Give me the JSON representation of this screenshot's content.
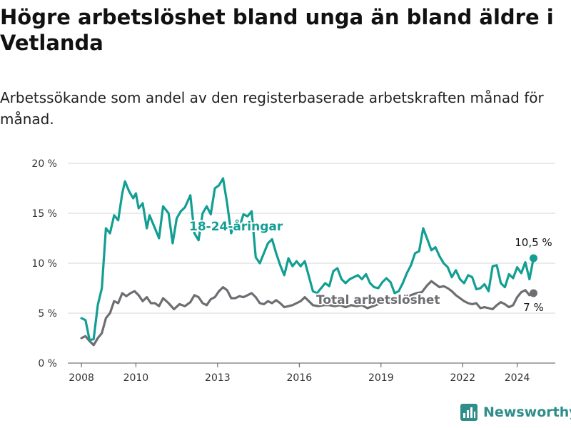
{
  "title": "Högre arbetslöshet bland unga än bland äldre i Vetlanda",
  "subtitle": "Arbetssökande som andel av den registerbaserade arbetskraften månad för månad.",
  "brand": {
    "name": "Newsworthy",
    "color": "#2f8e8a"
  },
  "chart_data": {
    "type": "line",
    "title": "Högre arbetslöshet bland unga än bland äldre i Vetlanda",
    "xlabel": "",
    "ylabel": "",
    "xlim": [
      2007.5,
      2025.4
    ],
    "ylim": [
      0,
      20
    ],
    "y_ticks": [
      0,
      5,
      10,
      15,
      20
    ],
    "y_tick_labels": [
      "0 %",
      "5 %",
      "10 %",
      "15 %",
      "20 %"
    ],
    "x_ticks": [
      2008,
      2010,
      2013,
      2016,
      2019,
      2022,
      2024
    ],
    "x_tick_labels": [
      "2008",
      "2010",
      "2013",
      "2016",
      "2019",
      "2022",
      "2024"
    ],
    "grid": true,
    "series": [
      {
        "name": "18-24-åringar",
        "color": "#129e93",
        "end_label": "10,5 %",
        "x": [
          2008.0,
          2008.15,
          2008.3,
          2008.45,
          2008.6,
          2008.75,
          2008.9,
          2009.05,
          2009.2,
          2009.35,
          2009.5,
          2009.6,
          2009.75,
          2009.9,
          2010.0,
          2010.1,
          2010.25,
          2010.4,
          2010.5,
          2010.7,
          2010.85,
          2011.0,
          2011.2,
          2011.35,
          2011.5,
          2011.65,
          2011.8,
          2012.0,
          2012.15,
          2012.3,
          2012.45,
          2012.6,
          2012.75,
          2012.9,
          2013.05,
          2013.2,
          2013.35,
          2013.5,
          2013.65,
          2013.8,
          2013.95,
          2014.1,
          2014.25,
          2014.4,
          2014.55,
          2014.7,
          2014.85,
          2015.0,
          2015.15,
          2015.3,
          2015.45,
          2015.6,
          2015.75,
          2015.9,
          2016.05,
          2016.2,
          2016.35,
          2016.5,
          2016.65,
          2016.8,
          2016.95,
          2017.1,
          2017.25,
          2017.4,
          2017.55,
          2017.7,
          2017.85,
          2018.0,
          2018.15,
          2018.3,
          2018.45,
          2018.6,
          2018.75,
          2018.9,
          2019.05,
          2019.2,
          2019.35,
          2019.5,
          2019.65,
          2019.8,
          2019.95,
          2020.1,
          2020.25,
          2020.4,
          2020.55,
          2020.7,
          2020.85,
          2021.0,
          2021.15,
          2021.3,
          2021.45,
          2021.6,
          2021.75,
          2021.9,
          2022.05,
          2022.2,
          2022.35,
          2022.5,
          2022.65,
          2022.8,
          2022.95,
          2023.1,
          2023.25,
          2023.4,
          2023.55,
          2023.7,
          2023.85,
          2024.0,
          2024.15,
          2024.3,
          2024.45,
          2024.6
        ],
        "values": [
          4.5,
          4.3,
          2.3,
          2.4,
          5.8,
          7.5,
          13.5,
          13.0,
          14.8,
          14.3,
          17.0,
          18.2,
          17.2,
          16.5,
          17.0,
          15.5,
          16.0,
          13.5,
          14.8,
          13.5,
          12.5,
          15.7,
          15.0,
          12.0,
          14.5,
          15.2,
          15.6,
          16.8,
          13.0,
          12.3,
          15.0,
          15.7,
          14.9,
          17.5,
          17.8,
          18.5,
          16.0,
          13.0,
          14.2,
          13.6,
          14.9,
          14.7,
          15.2,
          10.6,
          10.0,
          11.0,
          12.0,
          12.4,
          11.0,
          9.8,
          8.8,
          10.5,
          9.7,
          10.2,
          9.7,
          10.2,
          8.7,
          7.2,
          7.0,
          7.5,
          8.0,
          7.7,
          9.2,
          9.5,
          8.4,
          8.0,
          8.4,
          8.6,
          8.8,
          8.4,
          8.9,
          8.0,
          7.6,
          7.5,
          8.1,
          8.5,
          8.1,
          7.0,
          7.2,
          8.0,
          9.0,
          9.8,
          11.0,
          11.2,
          13.5,
          12.4,
          11.3,
          11.6,
          10.7,
          10.0,
          9.6,
          8.6,
          9.3,
          8.4,
          8.0,
          8.8,
          8.6,
          7.4,
          7.5,
          7.9,
          7.2,
          9.7,
          9.8,
          8.0,
          7.6,
          8.9,
          8.5,
          9.6,
          9.0,
          10.1,
          8.4,
          10.5
        ]
      },
      {
        "name": "Total arbetslöshet",
        "color": "#6d6d72",
        "end_label": "7 %",
        "x": [
          2008.0,
          2008.15,
          2008.3,
          2008.45,
          2008.6,
          2008.75,
          2008.9,
          2009.05,
          2009.2,
          2009.35,
          2009.5,
          2009.65,
          2009.8,
          2009.95,
          2010.1,
          2010.25,
          2010.4,
          2010.55,
          2010.7,
          2010.85,
          2011.0,
          2011.2,
          2011.4,
          2011.6,
          2011.8,
          2012.0,
          2012.15,
          2012.3,
          2012.45,
          2012.6,
          2012.75,
          2012.9,
          2013.05,
          2013.2,
          2013.35,
          2013.5,
          2013.65,
          2013.8,
          2013.95,
          2014.1,
          2014.25,
          2014.4,
          2014.55,
          2014.7,
          2014.85,
          2015.0,
          2015.15,
          2015.3,
          2015.45,
          2015.6,
          2015.75,
          2015.9,
          2016.05,
          2016.2,
          2016.35,
          2016.5,
          2016.7,
          2016.9,
          2017.1,
          2017.3,
          2017.5,
          2017.7,
          2017.9,
          2018.1,
          2018.3,
          2018.5,
          2018.7,
          2018.9,
          2019.1,
          2019.3,
          2019.5,
          2019.7,
          2019.9,
          2020.1,
          2020.3,
          2020.5,
          2020.7,
          2020.85,
          2021.0,
          2021.15,
          2021.3,
          2021.45,
          2021.6,
          2021.75,
          2021.9,
          2022.05,
          2022.2,
          2022.35,
          2022.5,
          2022.65,
          2022.8,
          2022.95,
          2023.1,
          2023.25,
          2023.4,
          2023.55,
          2023.7,
          2023.85,
          2024.0,
          2024.15,
          2024.3,
          2024.45,
          2024.6
        ],
        "values": [
          2.5,
          2.7,
          2.2,
          1.8,
          2.5,
          3.0,
          4.5,
          5.0,
          6.2,
          6.0,
          7.0,
          6.7,
          7.0,
          7.2,
          6.8,
          6.2,
          6.6,
          6.0,
          6.0,
          5.7,
          6.5,
          6.0,
          5.4,
          5.9,
          5.7,
          6.1,
          6.8,
          6.6,
          6.0,
          5.8,
          6.4,
          6.6,
          7.2,
          7.6,
          7.3,
          6.5,
          6.5,
          6.7,
          6.6,
          6.8,
          7.0,
          6.6,
          6.0,
          5.9,
          6.2,
          6.0,
          6.3,
          6.0,
          5.6,
          5.7,
          5.8,
          6.0,
          6.2,
          6.6,
          6.2,
          5.8,
          5.7,
          5.8,
          5.8,
          5.7,
          5.8,
          5.6,
          5.8,
          5.7,
          5.8,
          5.5,
          5.7,
          5.9,
          6.0,
          6.2,
          6.1,
          6.3,
          6.6,
          6.8,
          7.0,
          7.1,
          7.8,
          8.2,
          7.9,
          7.6,
          7.7,
          7.5,
          7.2,
          6.8,
          6.5,
          6.2,
          6.0,
          5.9,
          6.0,
          5.5,
          5.6,
          5.5,
          5.4,
          5.8,
          6.1,
          5.9,
          5.6,
          5.8,
          6.6,
          7.1,
          7.3,
          6.8,
          7.0
        ]
      }
    ],
    "annotations": [
      {
        "text": "18-24-åringar",
        "series": "18-24-åringar",
        "x": 2014.2,
        "y": 13.6
      },
      {
        "text": "Total arbetslöshet",
        "series": "Total arbetslöshet",
        "x": 2016.5,
        "y": 6.5
      }
    ]
  }
}
